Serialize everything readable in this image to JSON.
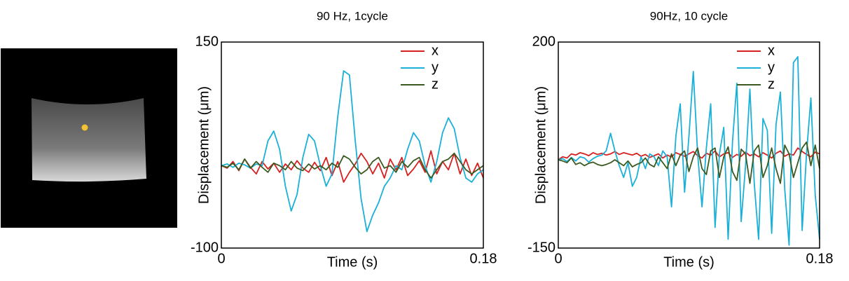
{
  "chart_data": [
    {
      "type": "line",
      "title": "90 Hz, 1cycle",
      "x_label": "Time (s)",
      "y_label": "Displacement (μm)",
      "xlim": [
        0,
        0.18
      ],
      "xticks": [
        0,
        0.18
      ],
      "ylim": [
        -100,
        150
      ],
      "yticks": [
        -100,
        150
      ],
      "legend": "upper right",
      "x": [
        0,
        0.004,
        0.008,
        0.012,
        0.016,
        0.02,
        0.024,
        0.028,
        0.032,
        0.036,
        0.04,
        0.044,
        0.048,
        0.052,
        0.056,
        0.06,
        0.064,
        0.068,
        0.072,
        0.076,
        0.08,
        0.084,
        0.088,
        0.092,
        0.096,
        0.1,
        0.104,
        0.108,
        0.112,
        0.116,
        0.12,
        0.124,
        0.128,
        0.132,
        0.136,
        0.14,
        0.144,
        0.148,
        0.152,
        0.156,
        0.16,
        0.164,
        0.168,
        0.172,
        0.176,
        0.18
      ],
      "series": [
        {
          "name": "x",
          "color": "#d62020",
          "values": [
            0,
            -3,
            5,
            -6,
            8,
            -2,
            -10,
            5,
            -4,
            3,
            -8,
            2,
            -5,
            6,
            -3,
            -8,
            4,
            -6,
            10,
            -12,
            5,
            -20,
            -8,
            2,
            15,
            5,
            -10,
            3,
            -15,
            8,
            -5,
            10,
            -12,
            -4,
            6,
            -8,
            18,
            -10,
            5,
            -5,
            15,
            -10,
            8,
            -12,
            3,
            -15
          ]
        },
        {
          "name": "y",
          "color": "#1ab0d8",
          "values": [
            0,
            2,
            -2,
            3,
            1,
            -3,
            2,
            0,
            30,
            42,
            20,
            -25,
            -55,
            -35,
            10,
            38,
            30,
            0,
            -25,
            -10,
            60,
            115,
            110,
            30,
            -40,
            -80,
            -60,
            -45,
            -25,
            -15,
            0,
            -5,
            20,
            40,
            30,
            0,
            -20,
            5,
            40,
            58,
            45,
            10,
            -15,
            -20,
            -10,
            -5
          ]
        },
        {
          "name": "z",
          "color": "#3a5a20",
          "values": [
            0,
            -2,
            3,
            -5,
            8,
            -3,
            5,
            -2,
            -8,
            3,
            0,
            -5,
            5,
            -3,
            -6,
            2,
            -4,
            0,
            -5,
            3,
            -2,
            12,
            8,
            -2,
            -10,
            -5,
            5,
            10,
            -3,
            0,
            -8,
            5,
            -2,
            6,
            10,
            -5,
            -15,
            -5,
            5,
            8,
            15,
            5,
            -5,
            -10,
            -5,
            0
          ]
        }
      ]
    },
    {
      "type": "line",
      "title": "90Hz, 10 cycle",
      "x_label": "Time (s)",
      "y_label": "Displacement (μm)",
      "xlim": [
        0,
        0.18
      ],
      "xticks": [
        0,
        0.18
      ],
      "ylim": [
        -150,
        200
      ],
      "yticks": [
        -150,
        200
      ],
      "legend": "upper right",
      "x": [
        0,
        0.003,
        0.006,
        0.009,
        0.012,
        0.015,
        0.018,
        0.021,
        0.024,
        0.027,
        0.03,
        0.033,
        0.036,
        0.039,
        0.042,
        0.045,
        0.048,
        0.051,
        0.054,
        0.057,
        0.06,
        0.063,
        0.066,
        0.069,
        0.072,
        0.075,
        0.078,
        0.081,
        0.084,
        0.087,
        0.09,
        0.093,
        0.096,
        0.099,
        0.102,
        0.105,
        0.108,
        0.111,
        0.114,
        0.117,
        0.12,
        0.123,
        0.126,
        0.129,
        0.132,
        0.135,
        0.138,
        0.141,
        0.144,
        0.147,
        0.15,
        0.153,
        0.156,
        0.159,
        0.162,
        0.165,
        0.168,
        0.171,
        0.174,
        0.177,
        0.18
      ],
      "series": [
        {
          "name": "x",
          "color": "#d62020",
          "values": [
            0,
            5,
            3,
            10,
            8,
            12,
            10,
            7,
            12,
            9,
            11,
            8,
            10,
            14,
            9,
            12,
            10,
            8,
            11,
            6,
            9,
            4,
            7,
            10,
            3,
            8,
            5,
            12,
            9,
            6,
            10,
            14,
            7,
            3,
            11,
            8,
            15,
            5,
            10,
            12,
            4,
            9,
            6,
            13,
            7,
            10,
            5,
            12,
            8,
            3,
            11,
            15,
            6,
            10,
            8,
            20,
            14,
            9,
            5,
            13,
            10
          ]
        },
        {
          "name": "y",
          "color": "#1ab0d8",
          "values": [
            0,
            2,
            -3,
            4,
            -2,
            5,
            3,
            -4,
            2,
            6,
            8,
            15,
            45,
            15,
            -10,
            -30,
            -5,
            -45,
            -30,
            5,
            -15,
            10,
            5,
            -10,
            15,
            5,
            -80,
            40,
            95,
            -55,
            40,
            150,
            10,
            -80,
            20,
            95,
            -115,
            10,
            55,
            -135,
            30,
            130,
            -105,
            -10,
            120,
            -40,
            -135,
            70,
            50,
            -125,
            60,
            115,
            -50,
            -145,
            165,
            175,
            -120,
            10,
            105,
            -60,
            -135
          ]
        },
        {
          "name": "z",
          "color": "#3a5a20",
          "values": [
            0,
            -2,
            -5,
            3,
            -8,
            -5,
            -10,
            -6,
            -4,
            -8,
            -10,
            -8,
            -5,
            0,
            -5,
            -10,
            -2,
            -12,
            -8,
            -5,
            3,
            -8,
            -12,
            5,
            -5,
            -15,
            10,
            -10,
            8,
            15,
            -20,
            5,
            20,
            -15,
            -25,
            15,
            20,
            -30,
            5,
            22,
            -20,
            -35,
            18,
            10,
            -40,
            15,
            25,
            -30,
            -10,
            20,
            -15,
            -40,
            25,
            10,
            -30,
            -5,
            20,
            30,
            -10,
            25,
            -15
          ]
        }
      ]
    }
  ]
}
